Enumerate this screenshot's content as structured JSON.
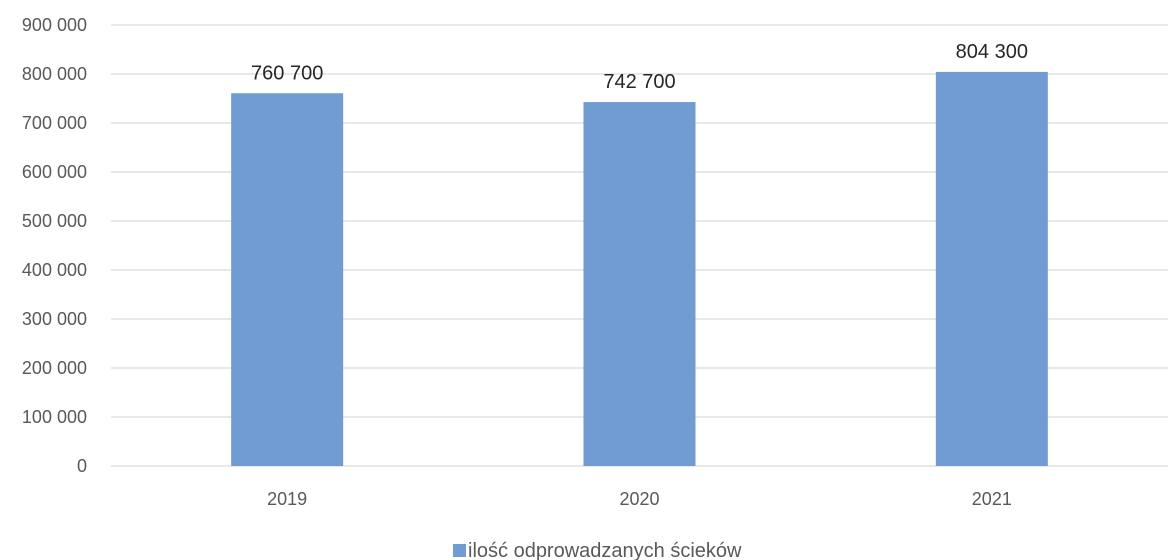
{
  "chart_data": {
    "type": "bar",
    "title": "",
    "xlabel": "",
    "ylabel": "",
    "categories": [
      "2019",
      "2020",
      "2021"
    ],
    "series": [
      {
        "name": "ilość odprowadzanych ścieków",
        "color": "#709bd3",
        "values": [
          760700,
          742700,
          804300
        ],
        "value_labels": [
          "760 700",
          "742 700",
          "804 300"
        ]
      }
    ],
    "ylim": [
      0,
      900000
    ],
    "yticks": [
      0,
      100000,
      200000,
      300000,
      400000,
      500000,
      600000,
      700000,
      800000,
      900000
    ],
    "ytick_labels": [
      "0",
      "100 000",
      "200 000",
      "300 000",
      "400 000",
      "500 000",
      "600 000",
      "700 000",
      "800 000",
      "900 000"
    ],
    "grid": true,
    "gridline_color": "#d9d9d9",
    "legend": "bottom"
  }
}
